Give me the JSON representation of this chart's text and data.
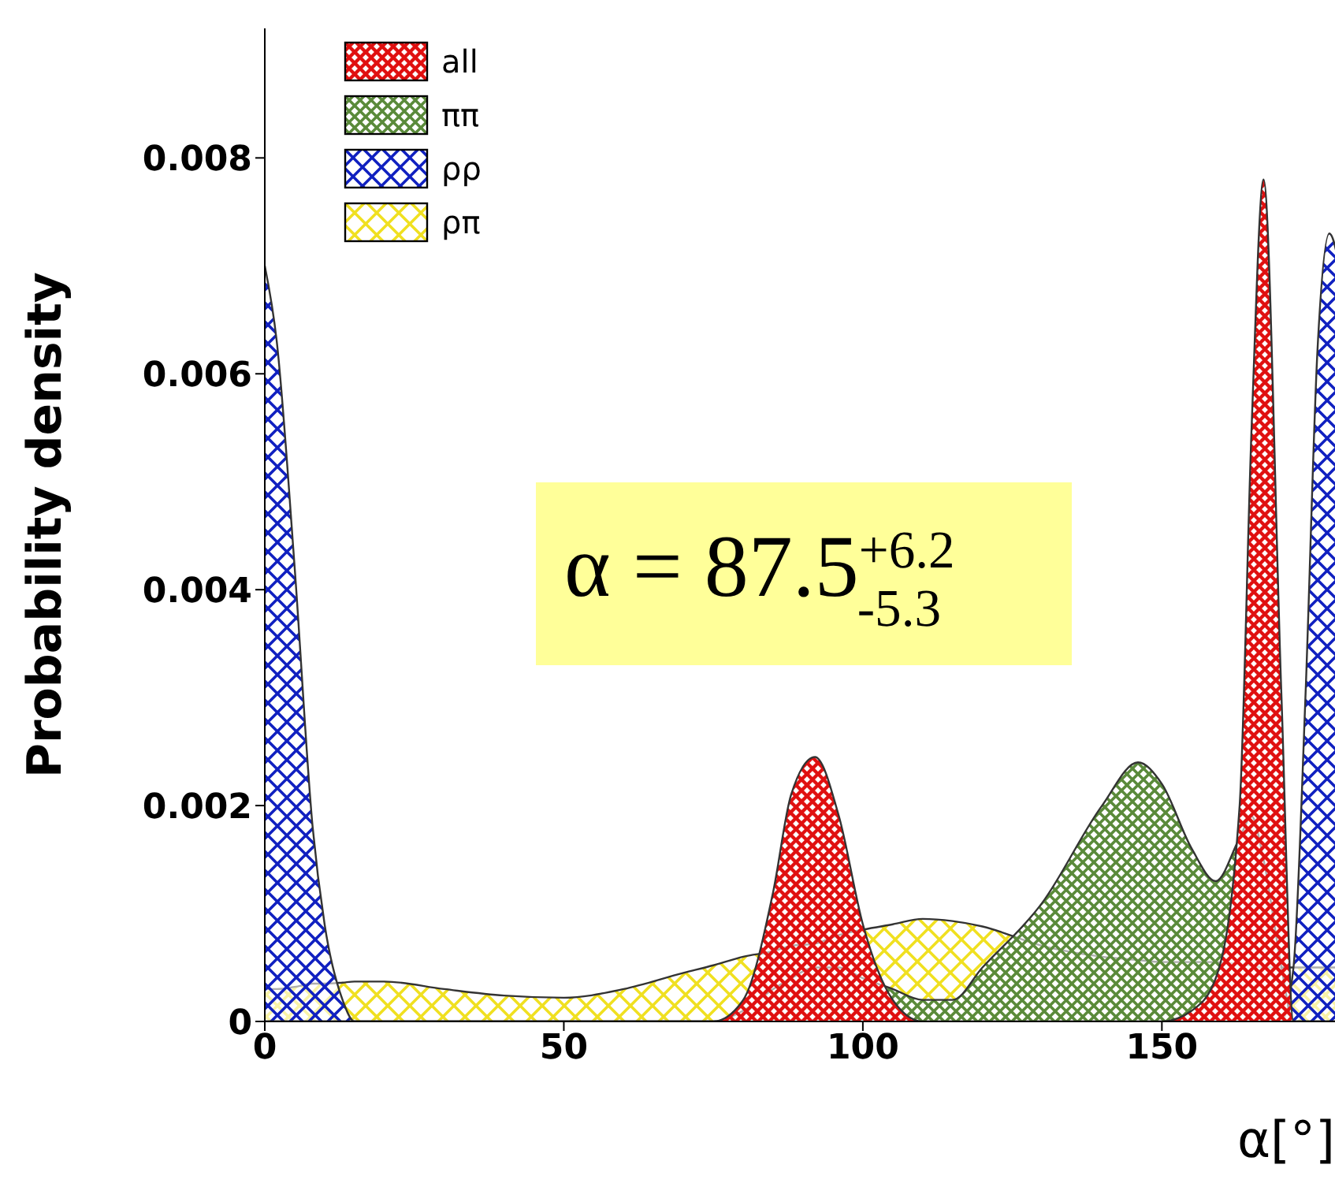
{
  "chart_data": {
    "type": "area",
    "ylabel": "Probability density",
    "xlabel": "α[°]",
    "annotations": [
      "α = 87.5$^{+6.2}$$_{-5.3}$"
    ],
    "x": [
      0,
      2,
      5,
      8,
      10,
      13,
      15,
      20,
      30,
      40,
      50,
      60,
      70,
      75,
      80,
      85,
      88,
      92,
      96,
      100,
      105,
      110,
      115,
      120,
      130,
      140,
      146,
      150,
      155,
      159,
      163,
      165,
      167,
      170,
      172,
      174,
      176,
      178,
      180
    ],
    "series": [
      {
        "name": "all",
        "color": "#e01010",
        "values": [
          0,
          0,
          0,
          0,
          0,
          0,
          0,
          0,
          0,
          0,
          0,
          0,
          0,
          0,
          0.0002,
          0.0012,
          0.0021,
          0.00245,
          0.0019,
          0.0009,
          0.0002,
          0,
          0,
          0,
          0,
          0,
          0,
          0,
          0.0001,
          0.0004,
          0.002,
          0.0055,
          0.0078,
          0.003,
          0,
          0,
          0,
          0,
          0
        ]
      },
      {
        "name": "ππ",
        "color": "#5a8a3a",
        "values": [
          0,
          0,
          0,
          0,
          0,
          0,
          0,
          0,
          0,
          0,
          0,
          0,
          0,
          0,
          0.0001,
          0.0003,
          0.0004,
          0.0005,
          0.0005,
          0.0004,
          0.0003,
          0.0002,
          0.0002,
          0.0005,
          0.0011,
          0.002,
          0.0024,
          0.0022,
          0.0016,
          0.0013,
          0.0017,
          0.0019,
          0.0015,
          0.0005,
          0,
          0,
          0,
          0,
          0
        ]
      },
      {
        "name": "ρρ",
        "color": "#1020c0",
        "values": [
          0.007,
          0.0063,
          0.0042,
          0.0018,
          0.0009,
          0.0002,
          0,
          0,
          0,
          0,
          0,
          0,
          0,
          0,
          0,
          0,
          0,
          0,
          0,
          0,
          0,
          0,
          0,
          0,
          0,
          0,
          0,
          0,
          0,
          0,
          0,
          0,
          0,
          0,
          0.0005,
          0.003,
          0.0062,
          0.0073,
          0.0069
        ]
      },
      {
        "name": "ρπ",
        "color": "#f0e020",
        "values": [
          0.0003,
          0.0003,
          0.00032,
          0.00035,
          0.00035,
          0.00036,
          0.00037,
          0.00037,
          0.0003,
          0.00024,
          0.00022,
          0.0003,
          0.00045,
          0.00052,
          0.0006,
          0.00065,
          0.0007,
          0.00072,
          0.0008,
          0.00085,
          0.0009,
          0.00095,
          0.00093,
          0.00088,
          0.0007,
          0.0006,
          0.00057,
          0.00055,
          0.00055,
          0.00055,
          0.00053,
          0.00052,
          0.0005,
          0.0005,
          0.0005,
          0.0005,
          0.0005,
          0.0005,
          0.0005
        ]
      }
    ],
    "xlim": [
      0,
      180
    ],
    "xticks": [
      0,
      50,
      100,
      150
    ],
    "ylim": [
      0,
      0.0092
    ],
    "yticks": [
      0,
      0.002,
      0.004,
      0.006,
      0.008
    ],
    "legend": "top left"
  }
}
